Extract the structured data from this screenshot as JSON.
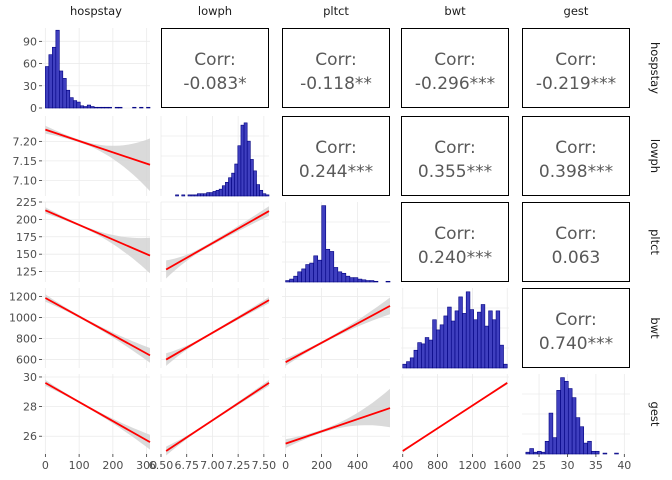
{
  "chart_data": {
    "type": "scatter-matrix",
    "variables": [
      "hospstay",
      "lowph",
      "pltct",
      "bwt",
      "gest"
    ],
    "diagonal": {
      "hospstay": {
        "type": "histogram",
        "range": [
          0,
          310
        ],
        "counts": [
          56,
          72,
          82,
          105,
          50,
          40,
          24,
          14,
          10,
          8,
          3,
          2,
          4,
          2,
          1,
          1,
          1,
          1,
          1,
          0,
          1,
          1,
          0,
          0,
          0,
          1,
          0,
          1,
          0,
          1
        ],
        "ylim": [
          0,
          108
        ],
        "yticks": [
          0,
          30,
          60,
          90
        ],
        "xticks": [
          0,
          100,
          200,
          300
        ]
      },
      "lowph": {
        "type": "histogram",
        "range": [
          6.55,
          7.55
        ],
        "counts": [
          0,
          0,
          0,
          1,
          0,
          1,
          0,
          1,
          1,
          1,
          2,
          2,
          2,
          3,
          3,
          4,
          5,
          6,
          9,
          12,
          16,
          20,
          28,
          44,
          62,
          64,
          48,
          32,
          22,
          10,
          5,
          2,
          1
        ],
        "ylim": [
          0,
          70
        ],
        "xticks": [
          6.5,
          6.75,
          7.0,
          7.25,
          7.5
        ],
        "xtick_labels": [
          "6.50",
          "6.75",
          "7.00",
          "7.25",
          "7.50"
        ]
      },
      "pltct": {
        "type": "histogram",
        "range": [
          0,
          580
        ],
        "counts": [
          2,
          4,
          8,
          14,
          18,
          24,
          26,
          36,
          30,
          105,
          45,
          42,
          20,
          14,
          12,
          8,
          6,
          6,
          4,
          3,
          2,
          2,
          1,
          0,
          0,
          1
        ],
        "ylim": [
          0,
          110
        ],
        "xticks": [
          0,
          200,
          400
        ]
      },
      "bwt": {
        "type": "histogram",
        "range": [
          400,
          1600
        ],
        "counts": [
          3,
          5,
          8,
          14,
          20,
          19,
          24,
          22,
          38,
          30,
          34,
          41,
          48,
          37,
          45,
          56,
          43,
          60,
          46,
          38,
          44,
          50,
          33,
          45,
          38,
          45,
          18,
          3
        ],
        "ylim": [
          0,
          63
        ],
        "xticks": [
          400,
          800,
          1200,
          1600
        ]
      },
      "gest": {
        "type": "histogram",
        "range": [
          22,
          41
        ],
        "counts": [
          0,
          2,
          6,
          2,
          3,
          2,
          14,
          45,
          18,
          70,
          84,
          80,
          72,
          62,
          40,
          30,
          12,
          14,
          3,
          3,
          0,
          1,
          0,
          0,
          1,
          0,
          0,
          0
        ],
        "ylim": [
          0,
          88
        ],
        "xticks": [
          25,
          30,
          35,
          40
        ]
      }
    },
    "upper": [
      {
        "row": "hospstay",
        "col": "lowph",
        "label": "Corr:",
        "value": "-0.083*"
      },
      {
        "row": "hospstay",
        "col": "pltct",
        "label": "Corr:",
        "value": "-0.118**"
      },
      {
        "row": "hospstay",
        "col": "bwt",
        "label": "Corr:",
        "value": "-0.296***"
      },
      {
        "row": "hospstay",
        "col": "gest",
        "label": "Corr:",
        "value": "-0.219***"
      },
      {
        "row": "lowph",
        "col": "pltct",
        "label": "Corr:",
        "value": "0.244***"
      },
      {
        "row": "lowph",
        "col": "bwt",
        "label": "Corr:",
        "value": "0.355***"
      },
      {
        "row": "lowph",
        "col": "gest",
        "label": "Corr:",
        "value": "0.398***"
      },
      {
        "row": "pltct",
        "col": "bwt",
        "label": "Corr:",
        "value": "0.240***"
      },
      {
        "row": "pltct",
        "col": "gest",
        "label": "Corr:",
        "value": "0.063"
      },
      {
        "row": "bwt",
        "col": "gest",
        "label": "Corr:",
        "value": "0.740***"
      }
    ],
    "lower": [
      {
        "row": "lowph",
        "col": "hospstay",
        "xlim": [
          0,
          310
        ],
        "ylim": [
          7.06,
          7.265
        ],
        "line": [
          [
            0,
            7.23
          ],
          [
            310,
            7.14
          ]
        ],
        "ci_start": [
          7.22,
          7.24
        ],
        "ci_end": [
          7.075,
          7.21
        ]
      },
      {
        "row": "pltct",
        "col": "hospstay",
        "xlim": [
          0,
          310
        ],
        "ylim": [
          110,
          225
        ],
        "line": [
          [
            0,
            213
          ],
          [
            310,
            148
          ]
        ],
        "ci_start": [
          209,
          218
        ],
        "ci_end": [
          122,
          173
        ]
      },
      {
        "row": "pltct",
        "col": "lowph",
        "xlim": [
          6.5,
          7.55
        ],
        "ylim": [
          110,
          225
        ],
        "line": [
          [
            6.55,
            128
          ],
          [
            7.55,
            212
          ]
        ],
        "ci_start": [
          115,
          141
        ],
        "ci_end": [
          205,
          219
        ]
      },
      {
        "row": "bwt",
        "col": "hospstay",
        "xlim": [
          0,
          310
        ],
        "ylim": [
          520,
          1280
        ],
        "line": [
          [
            0,
            1185
          ],
          [
            310,
            640
          ]
        ],
        "ci_start": [
          1150,
          1220
        ],
        "ci_end": [
          570,
          710
        ]
      },
      {
        "row": "bwt",
        "col": "lowph",
        "xlim": [
          6.5,
          7.55
        ],
        "ylim": [
          520,
          1280
        ],
        "line": [
          [
            6.55,
            600
          ],
          [
            7.55,
            1165
          ]
        ],
        "ci_start": [
          540,
          660
        ],
        "ci_end": [
          1135,
          1195
        ]
      },
      {
        "row": "bwt",
        "col": "pltct",
        "xlim": [
          0,
          580
        ],
        "ylim": [
          520,
          1280
        ],
        "line": [
          [
            0,
            575
          ],
          [
            580,
            1110
          ]
        ],
        "ci_start": [
          540,
          610
        ],
        "ci_end": [
          1030,
          1190
        ]
      },
      {
        "row": "gest",
        "col": "hospstay",
        "xlim": [
          0,
          310
        ],
        "ylim": [
          24.8,
          30.2
        ],
        "line": [
          [
            0,
            29.6
          ],
          [
            310,
            25.6
          ]
        ],
        "ci_start": [
          29.4,
          29.8
        ],
        "ci_end": [
          25.1,
          26.1
        ]
      },
      {
        "row": "gest",
        "col": "lowph",
        "xlim": [
          6.5,
          7.55
        ],
        "ylim": [
          24.8,
          30.2
        ],
        "line": [
          [
            6.55,
            25.0
          ],
          [
            7.55,
            29.6
          ]
        ],
        "ci_start": [
          24.7,
          25.3
        ],
        "ci_end": [
          29.4,
          29.8
        ]
      },
      {
        "row": "gest",
        "col": "pltct",
        "xlim": [
          0,
          580
        ],
        "ylim": [
          24.8,
          30.2
        ],
        "line": [
          [
            0,
            25.5
          ],
          [
            580,
            27.9
          ]
        ],
        "ci_start": [
          25.2,
          25.8
        ],
        "ci_end": [
          26.6,
          29.2
        ]
      },
      {
        "row": "gest",
        "col": "bwt",
        "xlim": [
          400,
          1600
        ],
        "ylim": [
          24.8,
          30.2
        ],
        "line": [
          [
            400,
            25.0
          ],
          [
            1600,
            29.6
          ]
        ],
        "ci_start": [
          24.9,
          25.1
        ],
        "ci_end": [
          29.5,
          29.7
        ]
      }
    ],
    "y_axis_ticks": {
      "hospstay": [
        0,
        30,
        60,
        90
      ],
      "lowph": {
        "lim": [
          7.06,
          7.265
        ],
        "ticks": [
          7.1,
          7.15,
          7.2
        ],
        "labels": [
          "7.10",
          "7.15",
          "7.20"
        ]
      },
      "pltct": {
        "lim": [
          110,
          225
        ],
        "ticks": [
          125,
          150,
          175,
          200,
          225
        ]
      },
      "bwt": {
        "lim": [
          520,
          1280
        ],
        "ticks": [
          600,
          800,
          1000,
          1200
        ]
      },
      "gest": {
        "lim": [
          24.8,
          30.2
        ],
        "ticks": [
          26,
          28,
          30
        ]
      }
    },
    "colors": {
      "bar_fill": "#3f3fbf",
      "bar_stroke": "#000080",
      "line": "#ff0000",
      "ribbon": "#d4d4d4",
      "grid": "#ebebeb",
      "text": "#4d4d4d",
      "corr_text": "#595959",
      "strip_bg": "#ffffff"
    }
  }
}
